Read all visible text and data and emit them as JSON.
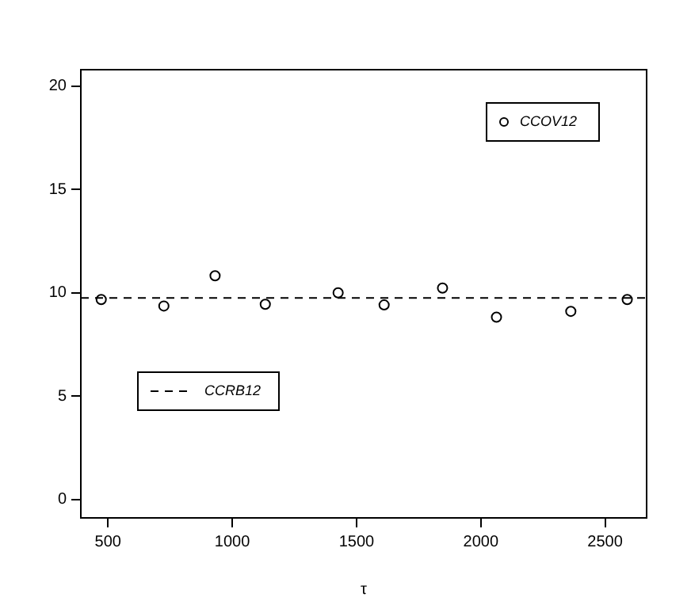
{
  "chart_data": {
    "type": "scatter",
    "xlabel": "τ",
    "x": [
      473,
      725,
      931,
      1133,
      1426,
      1611,
      1846,
      2063,
      2362,
      2589
    ],
    "series": [
      {
        "name": "CCOV12",
        "color": "#000000",
        "values": [
          9.67,
          9.36,
          10.82,
          9.44,
          10.0,
          9.41,
          10.23,
          8.82,
          9.1,
          9.67
        ]
      }
    ],
    "marker": "circle",
    "legend": "top right",
    "ref_lines": [
      {
        "axis": "y",
        "value": 9.75,
        "label": "CCRB12",
        "color": "#000000",
        "line_style": "dashed"
      }
    ],
    "xlim": [
      391,
      2667
    ],
    "ylim": [
      -0.9,
      20.8
    ],
    "xticks": [
      500,
      1000,
      1500,
      2000,
      2500
    ],
    "yticks": [
      0,
      5,
      10,
      15,
      20
    ],
    "grid": false
  }
}
